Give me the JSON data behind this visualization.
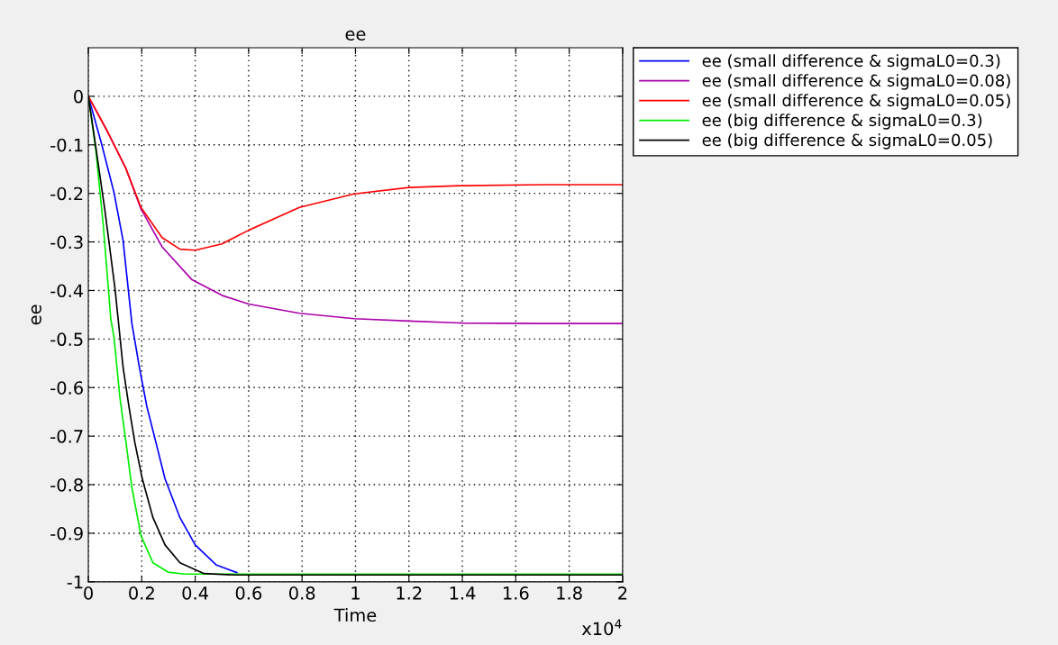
{
  "chart_data": {
    "type": "line",
    "title": "ee",
    "xlabel": "Time",
    "ylabel": "ee",
    "annotations": [
      "x10$^{4}$"
    ],
    "xlim": [
      0,
      2
    ],
    "xticks": [
      0,
      0.2,
      0.4,
      0.6,
      0.8,
      1,
      1.2,
      1.4,
      1.6,
      1.8,
      2
    ],
    "ylim": [
      -1,
      0.1
    ],
    "yticks": [
      0,
      -0.1,
      -0.2,
      -0.3,
      -0.4,
      -0.5,
      -0.6,
      -0.7,
      -0.8,
      -0.9,
      -1
    ],
    "grid": true,
    "legend": "right",
    "marker": "none",
    "line_style": "solid",
    "series": [
      {
        "name": "ee (small difference & sigmaL0=0.3)",
        "color": "#0000ff",
        "x": [
          0,
          0.05,
          0.096,
          0.13,
          0.163,
          0.191,
          0.219,
          0.253,
          0.287,
          0.343,
          0.4,
          0.478,
          0.556
        ],
        "values": [
          0,
          -0.099,
          -0.198,
          -0.297,
          -0.468,
          -0.558,
          -0.639,
          -0.713,
          -0.788,
          -0.868,
          -0.924,
          -0.965,
          -0.981
        ]
      },
      {
        "name": "ee (small difference & sigmaL0=0.08)",
        "color": "#aa00aa",
        "x": [
          0,
          0.073,
          0.14,
          0.197,
          0.276,
          0.388,
          0.5,
          0.6,
          0.79,
          0.995,
          1.2,
          1.4,
          1.7,
          2
        ],
        "values": [
          0,
          -0.074,
          -0.148,
          -0.232,
          -0.31,
          -0.378,
          -0.41,
          -0.428,
          -0.447,
          -0.458,
          -0.463,
          -0.467,
          -0.468,
          -0.468
        ]
      },
      {
        "name": "ee (small difference & sigmaL0=0.05)",
        "color": "#ff0000",
        "x": [
          0,
          0.073,
          0.14,
          0.197,
          0.276,
          0.343,
          0.4,
          0.5,
          0.6,
          0.79,
          0.995,
          1.2,
          1.4,
          1.7,
          2
        ],
        "values": [
          0,
          -0.074,
          -0.148,
          -0.229,
          -0.291,
          -0.315,
          -0.317,
          -0.304,
          -0.276,
          -0.229,
          -0.201,
          -0.188,
          -0.184,
          -0.182,
          -0.182
        ]
      },
      {
        "name": "ee (big difference & sigmaL0=0.3)",
        "color": "#00ee00",
        "x": [
          0,
          0.028,
          0.056,
          0.084,
          0.096,
          0.118,
          0.141,
          0.163,
          0.197,
          0.242,
          0.298,
          0.36,
          1,
          2
        ],
        "values": [
          0,
          -0.111,
          -0.266,
          -0.459,
          -0.496,
          -0.62,
          -0.713,
          -0.806,
          -0.905,
          -0.961,
          -0.98,
          -0.984,
          -0.984,
          -0.984
        ]
      },
      {
        "name": "ee (big difference & sigmaL0=0.05)",
        "color": "#000000",
        "x": [
          0,
          0.028,
          0.062,
          0.1,
          0.13,
          0.152,
          0.174,
          0.202,
          0.242,
          0.287,
          0.343,
          0.433,
          0.55,
          1,
          2
        ],
        "values": [
          0,
          -0.105,
          -0.235,
          -0.397,
          -0.558,
          -0.639,
          -0.713,
          -0.788,
          -0.868,
          -0.924,
          -0.961,
          -0.983,
          -0.986,
          -0.986,
          -0.986
        ]
      }
    ]
  }
}
